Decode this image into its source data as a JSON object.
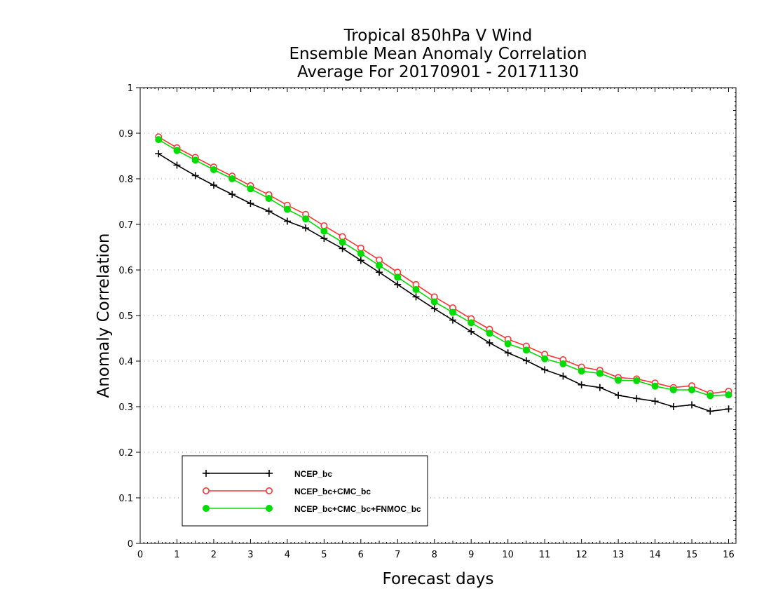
{
  "chart_data": {
    "type": "line",
    "title_lines": [
      "Tropical 850hPa V Wind",
      "Ensemble Mean Anomaly Correlation",
      "Average For 20170901 - 20171130"
    ],
    "xlabel": "Forecast days",
    "ylabel": "Anomaly Correlation",
    "xlim": [
      0,
      16.2
    ],
    "ylim": [
      0,
      1
    ],
    "x_ticks": [
      0,
      1,
      2,
      3,
      4,
      5,
      6,
      7,
      8,
      9,
      10,
      11,
      12,
      13,
      14,
      15,
      16
    ],
    "y_ticks": [
      0,
      0.1,
      0.2,
      0.3,
      0.4,
      0.5,
      0.6,
      0.7,
      0.8,
      0.9,
      1
    ],
    "y_tick_labels": [
      "0",
      "0.1",
      "0.2",
      "0.3",
      "0.4",
      "0.5",
      "0.6",
      "0.7",
      "0.8",
      "0.9",
      "1"
    ],
    "grid": "horizontal dotted",
    "legend_position": "bottom-left",
    "x": [
      0.5,
      1,
      1.5,
      2,
      2.5,
      3,
      3.5,
      4,
      4.5,
      5,
      5.5,
      6,
      6.5,
      7,
      7.5,
      8,
      8.5,
      9,
      9.5,
      10,
      10.5,
      11,
      11.5,
      12,
      12.5,
      13,
      13.5,
      14,
      14.5,
      15,
      15.5,
      16
    ],
    "series": [
      {
        "name": "NCEP_bc",
        "color": "#000000",
        "marker": "plus",
        "values": [
          0.855,
          0.83,
          0.807,
          0.786,
          0.766,
          0.746,
          0.729,
          0.707,
          0.692,
          0.669,
          0.647,
          0.621,
          0.595,
          0.568,
          0.541,
          0.515,
          0.49,
          0.465,
          0.44,
          0.418,
          0.401,
          0.381,
          0.367,
          0.348,
          0.342,
          0.325,
          0.318,
          0.312,
          0.3,
          0.304,
          0.29,
          0.295
        ]
      },
      {
        "name": "NCEP_bc+CMC_bc",
        "color": "#ff3333",
        "marker": "open-circle",
        "values": [
          0.892,
          0.868,
          0.847,
          0.826,
          0.806,
          0.785,
          0.765,
          0.742,
          0.722,
          0.697,
          0.673,
          0.648,
          0.622,
          0.595,
          0.568,
          0.541,
          0.517,
          0.493,
          0.47,
          0.448,
          0.433,
          0.415,
          0.403,
          0.387,
          0.38,
          0.364,
          0.361,
          0.352,
          0.342,
          0.346,
          0.329,
          0.334
        ]
      },
      {
        "name": "NCEP_bc+CMC_bc+FNMOC_bc",
        "color": "#00dd00",
        "marker": "filled-circle",
        "values": [
          0.886,
          0.862,
          0.841,
          0.82,
          0.8,
          0.778,
          0.757,
          0.733,
          0.712,
          0.685,
          0.661,
          0.636,
          0.61,
          0.584,
          0.557,
          0.53,
          0.507,
          0.484,
          0.461,
          0.438,
          0.424,
          0.405,
          0.394,
          0.378,
          0.373,
          0.358,
          0.357,
          0.345,
          0.337,
          0.337,
          0.324,
          0.326
        ]
      }
    ]
  }
}
